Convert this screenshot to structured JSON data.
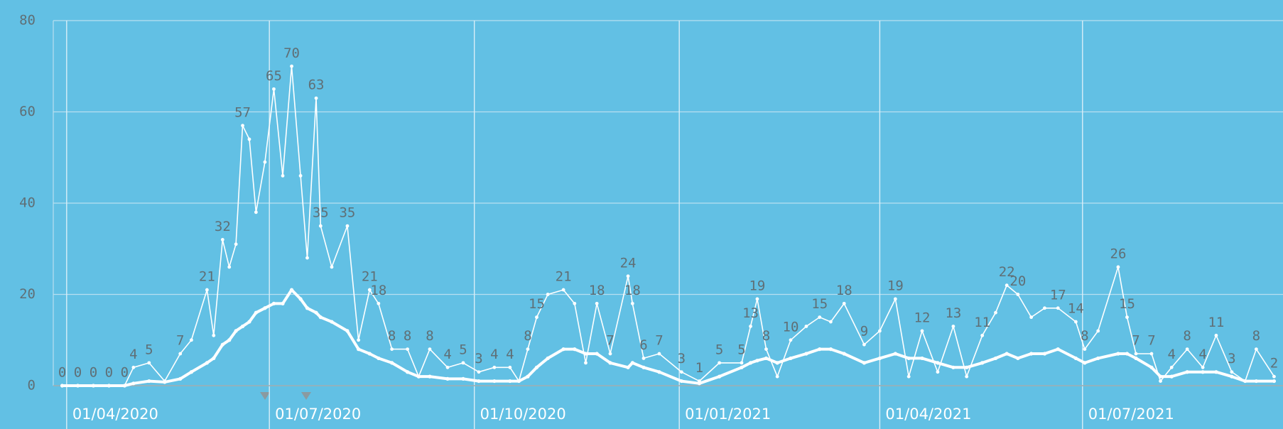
{
  "chart_data": {
    "type": "line",
    "x": [
      "2020-03-30",
      "2020-04-06",
      "2020-04-13",
      "2020-04-20",
      "2020-04-27",
      "2020-05-01",
      "2020-05-08",
      "2020-05-15",
      "2020-05-22",
      "2020-05-27",
      "2020-06-03",
      "2020-06-06",
      "2020-06-10",
      "2020-06-13",
      "2020-06-16",
      "2020-06-19",
      "2020-06-22",
      "2020-06-25",
      "2020-06-29",
      "2020-07-03",
      "2020-07-07",
      "2020-07-11",
      "2020-07-15",
      "2020-07-18",
      "2020-07-22",
      "2020-07-24",
      "2020-07-29",
      "2020-08-05",
      "2020-08-10",
      "2020-08-15",
      "2020-08-19",
      "2020-08-25",
      "2020-09-01",
      "2020-09-06",
      "2020-09-11",
      "2020-09-19",
      "2020-09-26",
      "2020-10-03",
      "2020-10-10",
      "2020-10-17",
      "2020-10-21",
      "2020-10-25",
      "2020-10-29",
      "2020-11-03",
      "2020-11-10",
      "2020-11-15",
      "2020-11-20",
      "2020-11-25",
      "2020-12-01",
      "2020-12-09",
      "2020-12-11",
      "2020-12-16",
      "2020-12-23",
      "2021-01-02",
      "2021-01-10",
      "2021-01-19",
      "2021-01-29",
      "2021-02-02",
      "2021-02-05",
      "2021-02-09",
      "2021-02-14",
      "2021-02-20",
      "2021-02-27",
      "2021-03-05",
      "2021-03-10",
      "2021-03-16",
      "2021-03-25",
      "2021-04-01",
      "2021-04-08",
      "2021-04-14",
      "2021-04-20",
      "2021-04-27",
      "2021-05-04",
      "2021-05-10",
      "2021-05-17",
      "2021-05-23",
      "2021-05-28",
      "2021-06-02",
      "2021-06-08",
      "2021-06-14",
      "2021-06-20",
      "2021-06-28",
      "2021-07-02",
      "2021-07-08",
      "2021-07-17",
      "2021-07-21",
      "2021-07-25",
      "2021-08-01",
      "2021-08-05",
      "2021-08-10",
      "2021-08-17",
      "2021-08-24",
      "2021-08-30",
      "2021-09-06",
      "2021-09-12",
      "2021-09-17",
      "2021-09-25"
    ],
    "series": [
      {
        "color": "#ffffff",
        "values": [
          0,
          0,
          0,
          0,
          0,
          4,
          5,
          1,
          7,
          10,
          21,
          11,
          32,
          26,
          31,
          57,
          54,
          38,
          49,
          65,
          46,
          70,
          46,
          28,
          63,
          35,
          26,
          35,
          10,
          21,
          18,
          8,
          8,
          2,
          8,
          4,
          5,
          3,
          4,
          4,
          1,
          8,
          15,
          20,
          21,
          18,
          5,
          18,
          7,
          24,
          18,
          6,
          7,
          3,
          1,
          5,
          5,
          13,
          19,
          8,
          2,
          10,
          13,
          15,
          14,
          18,
          9,
          12,
          19,
          2,
          12,
          3,
          13,
          2,
          11,
          16,
          22,
          20,
          15,
          17,
          17,
          14,
          8,
          12,
          26,
          15,
          7,
          7,
          1,
          4,
          8,
          4,
          11,
          3,
          1,
          8,
          2
        ],
        "value_labels": [
          "0",
          "0",
          "0",
          "0",
          "0",
          "4",
          "5",
          null,
          "7",
          null,
          "21",
          null,
          "32",
          null,
          null,
          "57",
          null,
          null,
          null,
          "65",
          null,
          "70",
          null,
          null,
          "63",
          "35",
          null,
          "35",
          null,
          "21",
          "18",
          "8",
          "8",
          null,
          "8",
          "4",
          "5",
          "3",
          "4",
          "4",
          null,
          "8",
          "15",
          null,
          "21",
          null,
          null,
          "18",
          "7",
          "24",
          "18",
          "6",
          "7",
          "3",
          "1",
          "5",
          "5",
          "13",
          "19",
          "8",
          null,
          "10",
          null,
          "15",
          null,
          "18",
          "9",
          null,
          "19",
          null,
          "12",
          null,
          "13",
          null,
          "11",
          null,
          "22",
          "20",
          null,
          null,
          "17",
          "14",
          "8",
          null,
          "26",
          "15",
          "7",
          "7",
          null,
          "4",
          "8",
          "4",
          "11",
          "3",
          null,
          "8",
          "2"
        ]
      },
      {
        "color": "#ffffff",
        "values": [
          0,
          0,
          0,
          0,
          0,
          0.5,
          1,
          0.8,
          1.5,
          3,
          5,
          6,
          9,
          10,
          12,
          13,
          14,
          16,
          17,
          18,
          18,
          21,
          19,
          17,
          16,
          15,
          14,
          12,
          8,
          7,
          6,
          5,
          3,
          2,
          2,
          1.5,
          1.5,
          1,
          1,
          1,
          1,
          2,
          4,
          6,
          8,
          8,
          7,
          7,
          5,
          4,
          5,
          4,
          3,
          1,
          0.5,
          2,
          4,
          5,
          5.5,
          6,
          5,
          6,
          7,
          8,
          8,
          7,
          5,
          6,
          7,
          6,
          6,
          5,
          4,
          4,
          5,
          6,
          7,
          6,
          7,
          7,
          8,
          6,
          5,
          6,
          7,
          7,
          6,
          4,
          2,
          2,
          3,
          3,
          3,
          2,
          1,
          1,
          1
        ]
      }
    ],
    "xlim": [
      "2020-03-26",
      "2021-09-29"
    ],
    "xticks": [
      {
        "value": "2020-04-01",
        "label": "01/04/2020"
      },
      {
        "value": "2020-07-01",
        "label": "01/07/2020"
      },
      {
        "value": "2020-10-01",
        "label": "01/10/2020"
      },
      {
        "value": "2021-01-01",
        "label": "01/01/2021"
      },
      {
        "value": "2021-04-01",
        "label": "01/04/2021"
      },
      {
        "value": "2021-07-01",
        "label": "01/07/2021"
      }
    ],
    "ylim": [
      0,
      80
    ],
    "yticks": [
      0,
      20,
      40,
      60,
      80
    ],
    "grid": true
  }
}
